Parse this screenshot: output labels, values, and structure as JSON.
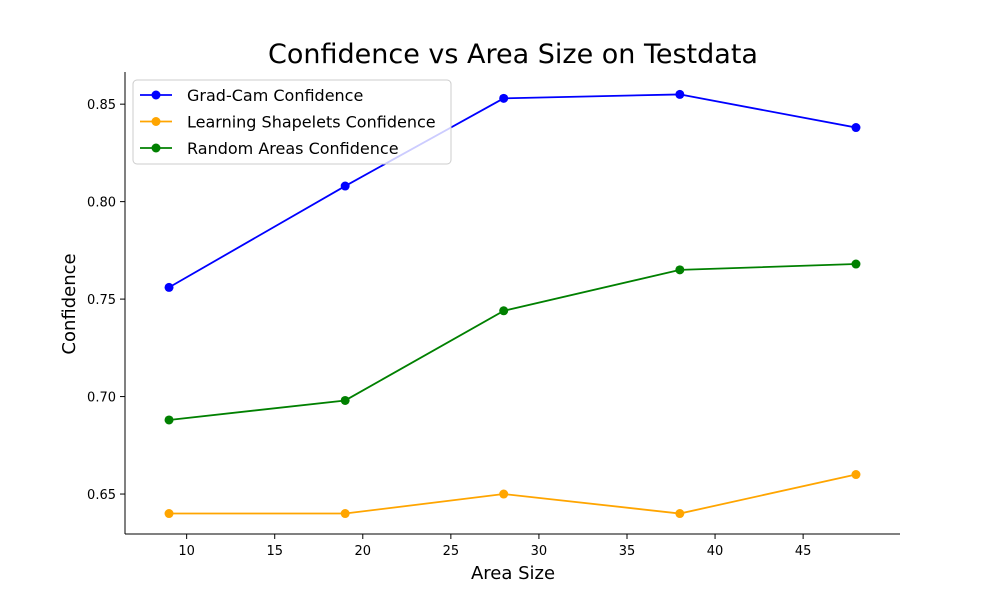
{
  "chart_data": {
    "type": "line",
    "title": "Confidence vs Area Size on Testdata",
    "xlabel": "Area Size",
    "ylabel": "Confidence",
    "x": [
      9,
      19,
      28,
      38,
      48
    ],
    "xlim": [
      6.5,
      50.5
    ],
    "ylim": [
      0.6295,
      0.8665
    ],
    "xticks": [
      10,
      15,
      20,
      25,
      30,
      35,
      40,
      45
    ],
    "yticks": [
      0.65,
      0.7,
      0.75,
      0.8,
      0.85
    ],
    "ytick_labels": [
      "0.65",
      "0.70",
      "0.75",
      "0.80",
      "0.85"
    ],
    "grid": false,
    "legend_position": "top-left",
    "series": [
      {
        "name": "Grad-Cam Confidence",
        "color": "#0000ff",
        "values": [
          0.756,
          0.808,
          0.853,
          0.855,
          0.838
        ]
      },
      {
        "name": "Learning Shapelets Confidence",
        "color": "#ffa500",
        "values": [
          0.64,
          0.64,
          0.65,
          0.64,
          0.66
        ]
      },
      {
        "name": "Random Areas Confidence",
        "color": "#008000",
        "values": [
          0.688,
          0.698,
          0.744,
          0.765,
          0.768
        ]
      }
    ]
  }
}
